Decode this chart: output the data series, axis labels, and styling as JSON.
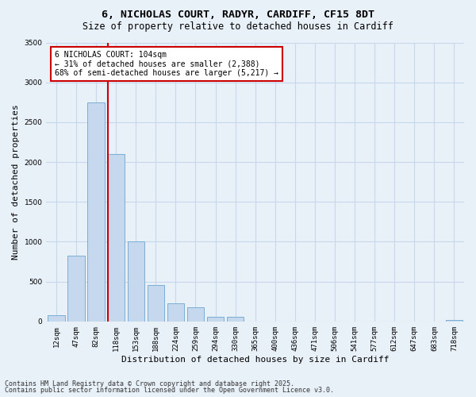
{
  "title_line1": "6, NICHOLAS COURT, RADYR, CARDIFF, CF15 8DT",
  "title_line2": "Size of property relative to detached houses in Cardiff",
  "xlabel": "Distribution of detached houses by size in Cardiff",
  "ylabel": "Number of detached properties",
  "categories": [
    "12sqm",
    "47sqm",
    "82sqm",
    "118sqm",
    "153sqm",
    "188sqm",
    "224sqm",
    "259sqm",
    "294sqm",
    "330sqm",
    "365sqm",
    "400sqm",
    "436sqm",
    "471sqm",
    "506sqm",
    "541sqm",
    "577sqm",
    "612sqm",
    "647sqm",
    "683sqm",
    "718sqm"
  ],
  "values": [
    75,
    830,
    2750,
    2100,
    1000,
    460,
    230,
    180,
    60,
    55,
    0,
    0,
    0,
    0,
    0,
    0,
    0,
    0,
    0,
    0,
    15
  ],
  "bar_color": "#c5d8ee",
  "bar_edge_color": "#7aaed4",
  "annotation_title": "6 NICHOLAS COURT: 104sqm",
  "annotation_line2": "← 31% of detached houses are smaller (2,388)",
  "annotation_line3": "68% of semi-detached houses are larger (5,217) →",
  "annotation_box_facecolor": "#ffffff",
  "annotation_box_edgecolor": "#cc0000",
  "vline_color": "#cc0000",
  "grid_color": "#c8d8ec",
  "background_color": "#e8f0f8",
  "ylim": [
    0,
    3500
  ],
  "yticks": [
    0,
    500,
    1000,
    1500,
    2000,
    2500,
    3000,
    3500
  ],
  "footer_line1": "Contains HM Land Registry data © Crown copyright and database right 2025.",
  "footer_line2": "Contains public sector information licensed under the Open Government Licence v3.0.",
  "title_fontsize": 9.5,
  "subtitle_fontsize": 8.5,
  "tick_fontsize": 6.5,
  "label_fontsize": 8,
  "annotation_fontsize": 7,
  "footer_fontsize": 6
}
